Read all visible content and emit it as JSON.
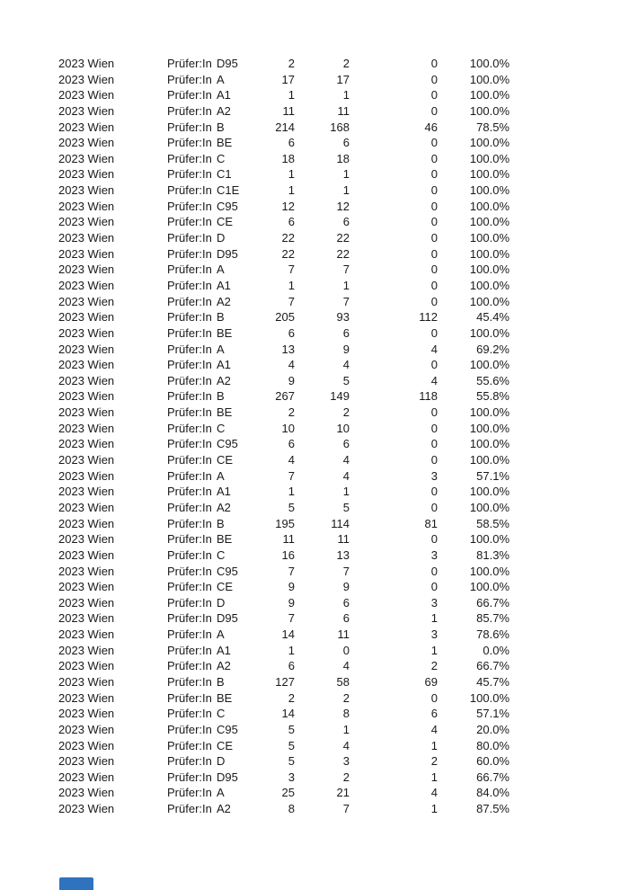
{
  "page": {
    "background": "#ffffff",
    "text_color": "#1a1a1a",
    "accent_blue": "#2f72bd"
  },
  "table": {
    "year_region": "2023 Wien",
    "examiner_label": "Prüfer:In",
    "columns_semantic": [
      "year-region",
      "examiner",
      "license-category",
      "total",
      "passed",
      "failed",
      "pass-rate"
    ],
    "rows": [
      {
        "category": "D95",
        "total": "2",
        "passed": "2",
        "failed": "0",
        "rate": "100.0%"
      },
      {
        "category": "A",
        "total": "17",
        "passed": "17",
        "failed": "0",
        "rate": "100.0%"
      },
      {
        "category": "A1",
        "total": "1",
        "passed": "1",
        "failed": "0",
        "rate": "100.0%"
      },
      {
        "category": "A2",
        "total": "11",
        "passed": "11",
        "failed": "0",
        "rate": "100.0%"
      },
      {
        "category": "B",
        "total": "214",
        "passed": "168",
        "failed": "46",
        "rate": "78.5%"
      },
      {
        "category": "BE",
        "total": "6",
        "passed": "6",
        "failed": "0",
        "rate": "100.0%"
      },
      {
        "category": "C",
        "total": "18",
        "passed": "18",
        "failed": "0",
        "rate": "100.0%"
      },
      {
        "category": "C1",
        "total": "1",
        "passed": "1",
        "failed": "0",
        "rate": "100.0%"
      },
      {
        "category": "C1E",
        "total": "1",
        "passed": "1",
        "failed": "0",
        "rate": "100.0%"
      },
      {
        "category": "C95",
        "total": "12",
        "passed": "12",
        "failed": "0",
        "rate": "100.0%"
      },
      {
        "category": "CE",
        "total": "6",
        "passed": "6",
        "failed": "0",
        "rate": "100.0%"
      },
      {
        "category": "D",
        "total": "22",
        "passed": "22",
        "failed": "0",
        "rate": "100.0%"
      },
      {
        "category": "D95",
        "total": "22",
        "passed": "22",
        "failed": "0",
        "rate": "100.0%"
      },
      {
        "category": "A",
        "total": "7",
        "passed": "7",
        "failed": "0",
        "rate": "100.0%"
      },
      {
        "category": "A1",
        "total": "1",
        "passed": "1",
        "failed": "0",
        "rate": "100.0%"
      },
      {
        "category": "A2",
        "total": "7",
        "passed": "7",
        "failed": "0",
        "rate": "100.0%"
      },
      {
        "category": "B",
        "total": "205",
        "passed": "93",
        "failed": "112",
        "rate": "45.4%"
      },
      {
        "category": "BE",
        "total": "6",
        "passed": "6",
        "failed": "0",
        "rate": "100.0%"
      },
      {
        "category": "A",
        "total": "13",
        "passed": "9",
        "failed": "4",
        "rate": "69.2%"
      },
      {
        "category": "A1",
        "total": "4",
        "passed": "4",
        "failed": "0",
        "rate": "100.0%"
      },
      {
        "category": "A2",
        "total": "9",
        "passed": "5",
        "failed": "4",
        "rate": "55.6%"
      },
      {
        "category": "B",
        "total": "267",
        "passed": "149",
        "failed": "118",
        "rate": "55.8%"
      },
      {
        "category": "BE",
        "total": "2",
        "passed": "2",
        "failed": "0",
        "rate": "100.0%"
      },
      {
        "category": "C",
        "total": "10",
        "passed": "10",
        "failed": "0",
        "rate": "100.0%"
      },
      {
        "category": "C95",
        "total": "6",
        "passed": "6",
        "failed": "0",
        "rate": "100.0%"
      },
      {
        "category": "CE",
        "total": "4",
        "passed": "4",
        "failed": "0",
        "rate": "100.0%"
      },
      {
        "category": "A",
        "total": "7",
        "passed": "4",
        "failed": "3",
        "rate": "57.1%"
      },
      {
        "category": "A1",
        "total": "1",
        "passed": "1",
        "failed": "0",
        "rate": "100.0%"
      },
      {
        "category": "A2",
        "total": "5",
        "passed": "5",
        "failed": "0",
        "rate": "100.0%"
      },
      {
        "category": "B",
        "total": "195",
        "passed": "114",
        "failed": "81",
        "rate": "58.5%"
      },
      {
        "category": "BE",
        "total": "11",
        "passed": "11",
        "failed": "0",
        "rate": "100.0%"
      },
      {
        "category": "C",
        "total": "16",
        "passed": "13",
        "failed": "3",
        "rate": "81.3%"
      },
      {
        "category": "C95",
        "total": "7",
        "passed": "7",
        "failed": "0",
        "rate": "100.0%"
      },
      {
        "category": "CE",
        "total": "9",
        "passed": "9",
        "failed": "0",
        "rate": "100.0%"
      },
      {
        "category": "D",
        "total": "9",
        "passed": "6",
        "failed": "3",
        "rate": "66.7%"
      },
      {
        "category": "D95",
        "total": "7",
        "passed": "6",
        "failed": "1",
        "rate": "85.7%"
      },
      {
        "category": "A",
        "total": "14",
        "passed": "11",
        "failed": "3",
        "rate": "78.6%"
      },
      {
        "category": "A1",
        "total": "1",
        "passed": "0",
        "failed": "1",
        "rate": "0.0%"
      },
      {
        "category": "A2",
        "total": "6",
        "passed": "4",
        "failed": "2",
        "rate": "66.7%"
      },
      {
        "category": "B",
        "total": "127",
        "passed": "58",
        "failed": "69",
        "rate": "45.7%"
      },
      {
        "category": "BE",
        "total": "2",
        "passed": "2",
        "failed": "0",
        "rate": "100.0%"
      },
      {
        "category": "C",
        "total": "14",
        "passed": "8",
        "failed": "6",
        "rate": "57.1%"
      },
      {
        "category": "C95",
        "total": "5",
        "passed": "1",
        "failed": "4",
        "rate": "20.0%"
      },
      {
        "category": "CE",
        "total": "5",
        "passed": "4",
        "failed": "1",
        "rate": "80.0%"
      },
      {
        "category": "D",
        "total": "5",
        "passed": "3",
        "failed": "2",
        "rate": "60.0%"
      },
      {
        "category": "D95",
        "total": "3",
        "passed": "2",
        "failed": "1",
        "rate": "66.7%"
      },
      {
        "category": "A",
        "total": "25",
        "passed": "21",
        "failed": "4",
        "rate": "84.0%"
      },
      {
        "category": "A2",
        "total": "8",
        "passed": "7",
        "failed": "1",
        "rate": "87.5%"
      }
    ]
  }
}
